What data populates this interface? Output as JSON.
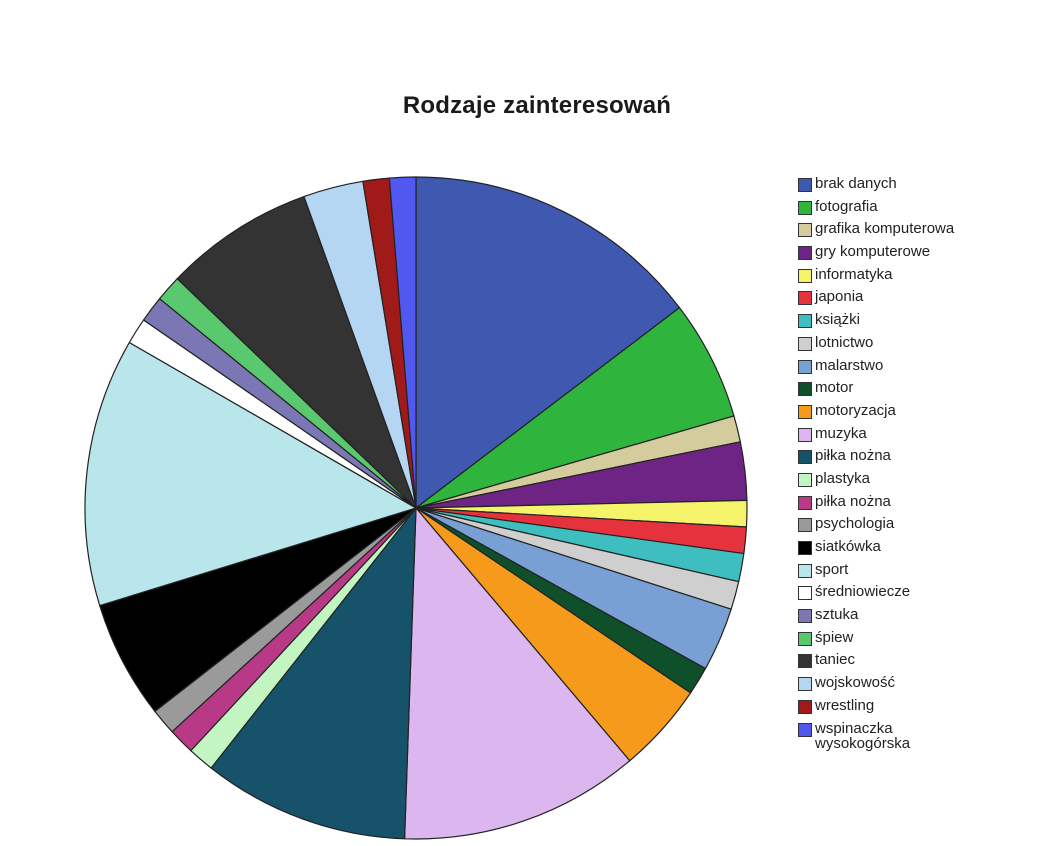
{
  "chart_data": {
    "type": "pie",
    "title": "Rodzaje zainteresowań",
    "legend_position": "right",
    "start_angle": "12 o'clock",
    "direction": "clockwise",
    "slices": [
      {
        "label": "brak danych",
        "value": 16.0,
        "color": "#3f58b0"
      },
      {
        "label": "fotografia",
        "value": 6.4,
        "color": "#2fb53d"
      },
      {
        "label": "grafika komputerowa",
        "value": 1.4,
        "color": "#d4cc9c"
      },
      {
        "label": "gry komputerowe",
        "value": 3.1,
        "color": "#6e2484"
      },
      {
        "label": "informatyka",
        "value": 1.4,
        "color": "#f5f36a"
      },
      {
        "label": "japonia",
        "value": 1.4,
        "color": "#e6323c"
      },
      {
        "label": "książki",
        "value": 1.5,
        "color": "#3ebebe"
      },
      {
        "label": "lotnictwo",
        "value": 1.5,
        "color": "#cfcfcf"
      },
      {
        "label": "malarstwo",
        "value": 3.4,
        "color": "#78a0d4"
      },
      {
        "label": "motor",
        "value": 1.5,
        "color": "#0f4f2a"
      },
      {
        "label": "motoryzacja",
        "value": 4.8,
        "color": "#f59a1a"
      },
      {
        "label": "muzyka",
        "value": 12.8,
        "color": "#dbb6ef"
      },
      {
        "label": "piłka nożna",
        "value": 11.0,
        "color": "#16526a"
      },
      {
        "label": "plastyka",
        "value": 1.4,
        "color": "#c2f5c2"
      },
      {
        "label": "piłka nożna",
        "value": 1.4,
        "color": "#b83a86"
      },
      {
        "label": "psychologia",
        "value": 1.4,
        "color": "#9a9a9a"
      },
      {
        "label": "siatkówka",
        "value": 6.3,
        "color": "#000000"
      },
      {
        "label": "sport",
        "value": 14.3,
        "color": "#b9e6ea"
      },
      {
        "label": "średniowiecze",
        "value": 1.4,
        "color": "#ffffff"
      },
      {
        "label": "sztuka",
        "value": 1.4,
        "color": "#7a77b4"
      },
      {
        "label": "śpiew",
        "value": 1.4,
        "color": "#5ac86e"
      },
      {
        "label": "taniec",
        "value": 8.0,
        "color": "#333333"
      },
      {
        "label": "wojskowość",
        "value": 3.2,
        "color": "#b4d6f2"
      },
      {
        "label": "wrestling",
        "value": 1.4,
        "color": "#a01a1a"
      },
      {
        "label": "wspinaczka\nwysokogórska",
        "value": 1.4,
        "color": "#5058f0"
      }
    ]
  }
}
